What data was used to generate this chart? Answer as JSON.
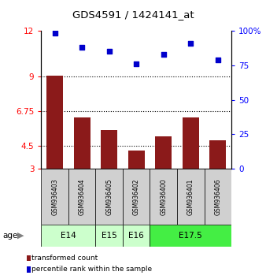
{
  "title": "GDS4591 / 1424141_at",
  "samples": [
    "GSM936403",
    "GSM936404",
    "GSM936405",
    "GSM936402",
    "GSM936400",
    "GSM936401",
    "GSM936406"
  ],
  "bar_values": [
    9.05,
    6.35,
    5.55,
    4.2,
    5.1,
    6.35,
    4.85
  ],
  "scatter_values": [
    98,
    88,
    85,
    76,
    83,
    91,
    79
  ],
  "bar_color": "#8B1A1A",
  "scatter_color": "#0000CC",
  "ylim_left": [
    3,
    12
  ],
  "ylim_right": [
    0,
    100
  ],
  "yticks_left": [
    3,
    4.5,
    6.75,
    9,
    12
  ],
  "yticks_left_labels": [
    "3",
    "4.5",
    "6.75",
    "9",
    "12"
  ],
  "yticks_right": [
    0,
    25,
    50,
    75,
    100
  ],
  "yticks_right_labels": [
    "0",
    "25",
    "50",
    "75",
    "100%"
  ],
  "hlines": [
    4.5,
    6.75,
    9
  ],
  "age_groups": [
    {
      "label": "E14",
      "samples": [
        0,
        1
      ],
      "color": "#ccffcc"
    },
    {
      "label": "E15",
      "samples": [
        2
      ],
      "color": "#ccffcc"
    },
    {
      "label": "E16",
      "samples": [
        3
      ],
      "color": "#ccffcc"
    },
    {
      "label": "E17.5",
      "samples": [
        4,
        5,
        6
      ],
      "color": "#44ee44"
    }
  ],
  "sample_box_color": "#d0d0d0",
  "bar_bottom": 3,
  "legend_items": [
    {
      "color": "#8B1A1A",
      "label": "transformed count"
    },
    {
      "color": "#0000CC",
      "label": "percentile rank within the sample"
    }
  ]
}
